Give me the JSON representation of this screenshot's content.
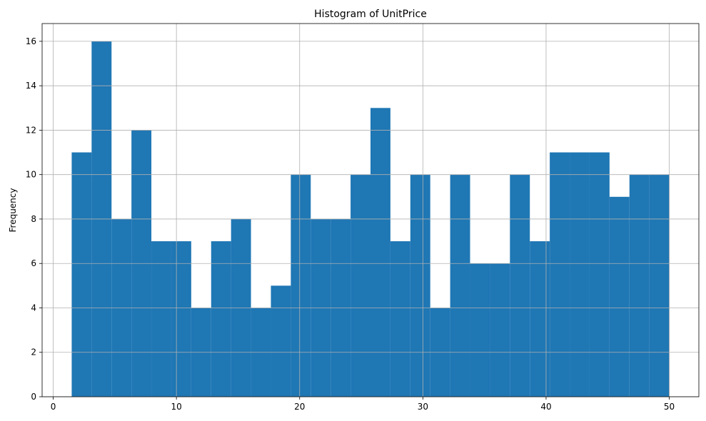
{
  "chart_data": {
    "type": "bar",
    "title": "Histogram of UnitPrice",
    "xlabel": "",
    "ylabel": "Frequency",
    "xlim": [
      -0.9,
      52.4
    ],
    "ylim": [
      0,
      16.8
    ],
    "x_ticks": [
      0,
      10,
      20,
      30,
      40,
      50
    ],
    "y_ticks": [
      0,
      2,
      4,
      6,
      8,
      10,
      12,
      14,
      16
    ],
    "grid": true,
    "legend": "none",
    "bar_color": "#1f77b4",
    "bin_start": 1.5,
    "bin_end": 50.0,
    "values": [
      11,
      16,
      8,
      12,
      7,
      7,
      4,
      7,
      8,
      4,
      5,
      10,
      8,
      8,
      10,
      13,
      7,
      10,
      4,
      10,
      6,
      6,
      10,
      7,
      11,
      11,
      11,
      9,
      10,
      10
    ]
  }
}
